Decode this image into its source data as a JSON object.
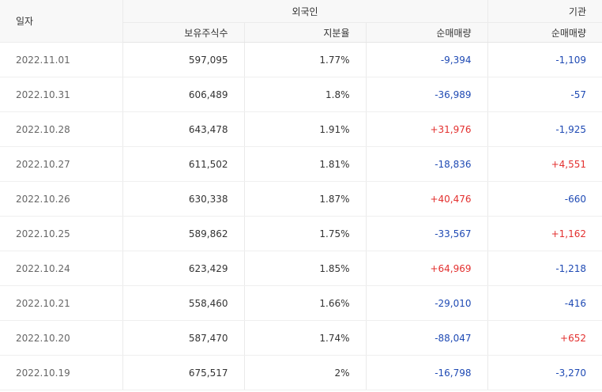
{
  "header": {
    "date": "일자",
    "foreign_group": "외국인",
    "institution_group": "기관",
    "held_shares": "보유주식수",
    "ownership": "지분율",
    "foreign_net": "순매매량",
    "institution_net": "순매매량"
  },
  "rows": [
    {
      "date": "2022.11.01",
      "held": "597,095",
      "ratio": "1.77%",
      "foreign_net": "-9,394",
      "inst_net": "-1,109"
    },
    {
      "date": "2022.10.31",
      "held": "606,489",
      "ratio": "1.8%",
      "foreign_net": "-36,989",
      "inst_net": "-57"
    },
    {
      "date": "2022.10.28",
      "held": "643,478",
      "ratio": "1.91%",
      "foreign_net": "+31,976",
      "inst_net": "-1,925"
    },
    {
      "date": "2022.10.27",
      "held": "611,502",
      "ratio": "1.81%",
      "foreign_net": "-18,836",
      "inst_net": "+4,551"
    },
    {
      "date": "2022.10.26",
      "held": "630,338",
      "ratio": "1.87%",
      "foreign_net": "+40,476",
      "inst_net": "-660"
    },
    {
      "date": "2022.10.25",
      "held": "589,862",
      "ratio": "1.75%",
      "foreign_net": "-33,567",
      "inst_net": "+1,162"
    },
    {
      "date": "2022.10.24",
      "held": "623,429",
      "ratio": "1.85%",
      "foreign_net": "+64,969",
      "inst_net": "-1,218"
    },
    {
      "date": "2022.10.21",
      "held": "558,460",
      "ratio": "1.66%",
      "foreign_net": "-29,010",
      "inst_net": "-416"
    },
    {
      "date": "2022.10.20",
      "held": "587,470",
      "ratio": "1.74%",
      "foreign_net": "-88,047",
      "inst_net": "+652"
    },
    {
      "date": "2022.10.19",
      "held": "675,517",
      "ratio": "2%",
      "foreign_net": "-16,798",
      "inst_net": "-3,270"
    }
  ],
  "colors": {
    "positive": "#e3302f",
    "negative": "#1f4ab4",
    "header_bg": "#f8f8f8"
  }
}
